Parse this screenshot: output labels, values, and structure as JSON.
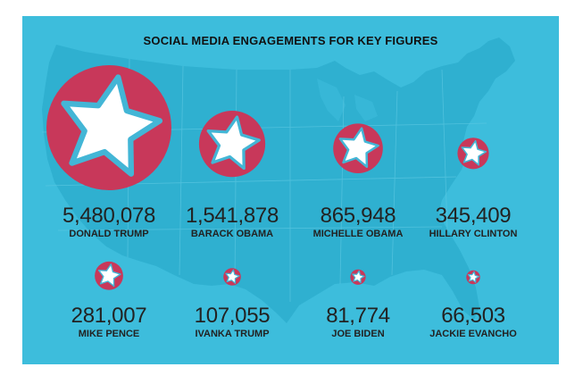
{
  "colors": {
    "background": "#3dbddc",
    "map_land": "#2fb0d0",
    "circle": "#c8385a",
    "star_outline": "#43b6d6",
    "star_fill": "#ffffff"
  },
  "chart_data": {
    "type": "bubble",
    "title": "SOCIAL MEDIA ENGAGEMENTS FOR KEY FIGURES",
    "categories": [
      "DONALD TRUMP",
      "BARACK OBAMA",
      "MICHELLE OBAMA",
      "HILLARY CLINTON",
      "MIKE PENCE",
      "IVANKA TRUMP",
      "JOE BIDEN",
      "JACKIE EVANCHO"
    ],
    "labels": [
      "5,480,078",
      "1,541,878",
      "865,948",
      "345,409",
      "281,007",
      "107,055",
      "81,774",
      "66,503"
    ],
    "values": [
      5480078,
      1541878,
      865948,
      345409,
      281007,
      107055,
      81774,
      66503
    ],
    "icon": "star-icon",
    "legend": "none"
  }
}
